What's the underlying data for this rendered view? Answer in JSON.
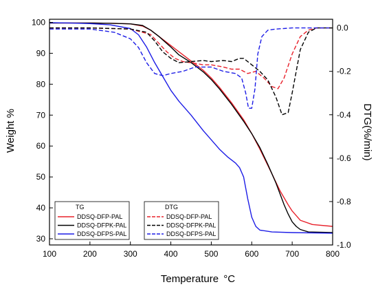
{
  "chart_data": {
    "type": "line",
    "xlabel": "Temperature",
    "xlabel_unit": "°C",
    "ylabel_left": "Weight %",
    "ylabel_right": "DTG(%/min)",
    "xlim": [
      100,
      800
    ],
    "ylim_left": [
      28,
      101
    ],
    "ylim_right": [
      -1.0,
      0.04
    ],
    "x_ticks": [
      100,
      200,
      300,
      400,
      500,
      600,
      700,
      800
    ],
    "y_left_ticks": [
      30,
      40,
      50,
      60,
      70,
      80,
      90,
      100
    ],
    "y_right_ticks": [
      0.0,
      -0.2,
      -0.4,
      -0.6,
      -0.8,
      -1.0
    ],
    "y_right_tick_labels": [
      "0.0",
      "-0.2",
      "-0.4",
      "-0.6",
      "-0.8",
      "-1.0"
    ],
    "legend_tg": {
      "title": "TG",
      "entries": [
        "DDSQ-DFP-PAL",
        "DDSQ-DFPK-PAL",
        "DDSQ-DFPS-PAL"
      ],
      "placement": "bottom-left"
    },
    "legend_dtg": {
      "title": "DTG",
      "entries": [
        "DDSQ-DFP-PAL",
        "DDSQ-DFPK-PAL",
        "DDSQ-DFPS-PAL"
      ],
      "placement": "bottom-center"
    },
    "series": [
      {
        "name": "DDSQ-DFP-PAL",
        "group": "TG",
        "axis": "left",
        "color": "#e8202a",
        "dash": false,
        "x": [
          100,
          150,
          200,
          250,
          300,
          330,
          350,
          370,
          400,
          420,
          450,
          480,
          500,
          520,
          550,
          580,
          600,
          620,
          650,
          670,
          690,
          700,
          720,
          750,
          800
        ],
        "y": [
          99.8,
          99.8,
          99.8,
          99.7,
          99.5,
          98.8,
          97.5,
          95.5,
          92.5,
          90.5,
          87.5,
          84.5,
          82.0,
          79.0,
          74.0,
          68.5,
          64.0,
          59.0,
          51.0,
          45.5,
          41.0,
          39.0,
          36.0,
          34.6,
          34.0
        ]
      },
      {
        "name": "DDSQ-DFPK-PAL",
        "group": "TG",
        "axis": "left",
        "color": "#000000",
        "dash": false,
        "x": [
          100,
          150,
          200,
          250,
          300,
          330,
          350,
          370,
          400,
          420,
          450,
          480,
          500,
          520,
          550,
          580,
          600,
          620,
          640,
          660,
          680,
          690,
          700,
          710,
          720,
          740,
          800
        ],
        "y": [
          99.8,
          99.8,
          99.8,
          99.7,
          99.5,
          99.0,
          97.5,
          95.5,
          92.0,
          89.5,
          87.0,
          84.0,
          81.5,
          78.5,
          73.5,
          68.0,
          64.0,
          59.5,
          54.0,
          48.0,
          41.0,
          38.0,
          35.5,
          34.0,
          33.0,
          32.2,
          32.0
        ]
      },
      {
        "name": "DDSQ-DFPS-PAL",
        "group": "TG",
        "axis": "left",
        "color": "#1c1ce6",
        "dash": false,
        "x": [
          100,
          150,
          200,
          250,
          300,
          320,
          340,
          360,
          380,
          400,
          420,
          450,
          480,
          500,
          520,
          540,
          560,
          570,
          580,
          590,
          600,
          610,
          620,
          650,
          700,
          800
        ],
        "y": [
          99.9,
          99.8,
          99.6,
          99.2,
          98.0,
          96.0,
          92.0,
          87.0,
          82.5,
          78.0,
          74.5,
          70.0,
          65.0,
          62.0,
          59.0,
          56.5,
          54.5,
          53.0,
          50.0,
          43.0,
          37.0,
          34.0,
          32.8,
          32.2,
          32.0,
          31.8
        ]
      },
      {
        "name": "DDSQ-DFP-PAL",
        "group": "DTG",
        "axis": "right",
        "color": "#e8202a",
        "dash": true,
        "x": [
          100,
          200,
          300,
          350,
          370,
          390,
          410,
          430,
          450,
          480,
          500,
          530,
          550,
          570,
          590,
          610,
          630,
          650,
          665,
          680,
          700,
          720,
          740,
          760,
          800
        ],
        "y": [
          0.0,
          0.0,
          -0.005,
          -0.03,
          -0.07,
          -0.11,
          -0.14,
          -0.155,
          -0.16,
          -0.17,
          -0.17,
          -0.18,
          -0.19,
          -0.19,
          -0.21,
          -0.2,
          -0.23,
          -0.27,
          -0.28,
          -0.23,
          -0.12,
          -0.04,
          -0.01,
          0.0,
          0.0
        ]
      },
      {
        "name": "DDSQ-DFPK-PAL",
        "group": "DTG",
        "axis": "right",
        "color": "#000000",
        "dash": true,
        "x": [
          100,
          200,
          300,
          340,
          360,
          380,
          400,
          420,
          450,
          480,
          500,
          530,
          550,
          570,
          580,
          600,
          620,
          640,
          660,
          675,
          690,
          700,
          720,
          740,
          760,
          800
        ],
        "y": [
          0.0,
          0.0,
          -0.005,
          -0.02,
          -0.06,
          -0.11,
          -0.14,
          -0.16,
          -0.155,
          -0.15,
          -0.155,
          -0.15,
          -0.155,
          -0.14,
          -0.14,
          -0.17,
          -0.2,
          -0.24,
          -0.32,
          -0.4,
          -0.39,
          -0.3,
          -0.1,
          -0.02,
          0.0,
          0.0
        ]
      },
      {
        "name": "DDSQ-DFPS-PAL",
        "group": "DTG",
        "axis": "right",
        "color": "#1c1ce6",
        "dash": true,
        "x": [
          100,
          200,
          260,
          300,
          320,
          340,
          360,
          380,
          400,
          430,
          460,
          500,
          530,
          560,
          575,
          585,
          592,
          600,
          608,
          615,
          625,
          640,
          660,
          700,
          750,
          800
        ],
        "y": [
          -0.005,
          -0.005,
          -0.02,
          -0.05,
          -0.09,
          -0.16,
          -0.21,
          -0.22,
          -0.21,
          -0.2,
          -0.18,
          -0.18,
          -0.2,
          -0.21,
          -0.23,
          -0.3,
          -0.37,
          -0.37,
          -0.28,
          -0.12,
          -0.04,
          -0.01,
          -0.005,
          0.0,
          0.0,
          0.0
        ]
      }
    ]
  }
}
